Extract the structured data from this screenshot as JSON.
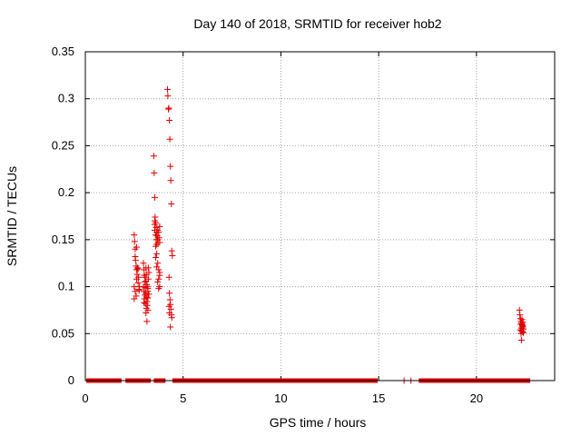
{
  "chart_data": {
    "type": "scatter",
    "title": "Day 140 of 2018, SRMTID for receiver hob2",
    "xlabel": "GPS time / hours",
    "ylabel": "SRMTID / TECUs",
    "xlim": [
      0,
      24
    ],
    "ylim": [
      0,
      0.35
    ],
    "xticks": [
      0,
      5,
      10,
      15,
      20
    ],
    "xtick_labels": [
      "0",
      "5",
      "10",
      "15",
      "20"
    ],
    "yticks": [
      0,
      0.05,
      0.1,
      0.15,
      0.2,
      0.25,
      0.3,
      0.35
    ],
    "ytick_labels": [
      "0",
      "0.05",
      "0.1",
      "0.15",
      "0.2",
      "0.25",
      "0.3",
      "0.35"
    ],
    "grid": true,
    "marker": "+",
    "marker_color": "#e00000",
    "zero_segments": [
      [
        0.05,
        1.85
      ],
      [
        2.05,
        3.35
      ],
      [
        3.5,
        4.1
      ],
      [
        4.45,
        14.95
      ],
      [
        17.05,
        22.75
      ]
    ],
    "zero_points": [
      16.3,
      16.65
    ],
    "series": [
      {
        "name": "SRMTID",
        "x": [
          2.5,
          2.52,
          2.55,
          2.57,
          2.6,
          2.62,
          2.65,
          2.5,
          2.55,
          2.6,
          2.62,
          2.67,
          2.7,
          2.72,
          2.75,
          2.77,
          2.5,
          2.55,
          2.62,
          2.7,
          2.75,
          2.97,
          3.0,
          3.02,
          3.05,
          3.07,
          3.1,
          3.12,
          3.15,
          3.17,
          3.2,
          3.22,
          3.25,
          2.97,
          3.0,
          3.05,
          3.1,
          3.15,
          3.2,
          3.25,
          3.02,
          3.07,
          3.12,
          3.17,
          3.22,
          3.0,
          3.1,
          3.2,
          3.05,
          3.15,
          3.1,
          3.2,
          3.12,
          3.5,
          3.52,
          3.55,
          3.57,
          3.6,
          3.62,
          3.65,
          3.67,
          3.7,
          3.72,
          3.55,
          3.6,
          3.62,
          3.65,
          3.7,
          3.75,
          3.77,
          3.8,
          3.55,
          3.6,
          3.65,
          3.7,
          3.75,
          3.8,
          3.6,
          3.7,
          3.75,
          3.8,
          3.65,
          3.75,
          3.8,
          3.8,
          3.55,
          3.7,
          4.2,
          4.22,
          4.25,
          4.27,
          4.3,
          4.32,
          4.35,
          4.37,
          4.4,
          4.42,
          4.45,
          4.28,
          4.3,
          4.33,
          4.35,
          4.38,
          4.4,
          4.42,
          4.35,
          4.3,
          4.28,
          22.2,
          22.22,
          22.25,
          22.27,
          22.3,
          22.32,
          22.35,
          22.37,
          22.4,
          22.25,
          22.3,
          22.35,
          22.4,
          22.28,
          22.33,
          22.38,
          22.3,
          22.35,
          22.27,
          22.32,
          22.37,
          22.3
        ],
        "y": [
          0.155,
          0.148,
          0.14,
          0.128,
          0.122,
          0.118,
          0.113,
          0.1,
          0.095,
          0.09,
          0.108,
          0.12,
          0.104,
          0.11,
          0.096,
          0.1,
          0.087,
          0.132,
          0.142,
          0.119,
          0.097,
          0.125,
          0.118,
          0.112,
          0.105,
          0.099,
          0.093,
          0.089,
          0.084,
          0.08,
          0.075,
          0.12,
          0.115,
          0.1,
          0.095,
          0.11,
          0.106,
          0.102,
          0.098,
          0.092,
          0.087,
          0.082,
          0.077,
          0.1,
          0.108,
          0.083,
          0.072,
          0.095,
          0.091,
          0.063,
          0.12,
          0.088,
          0.113,
          0.239,
          0.221,
          0.195,
          0.174,
          0.168,
          0.163,
          0.158,
          0.154,
          0.15,
          0.147,
          0.16,
          0.155,
          0.15,
          0.145,
          0.16,
          0.158,
          0.152,
          0.147,
          0.166,
          0.143,
          0.135,
          0.125,
          0.118,
          0.112,
          0.131,
          0.105,
          0.098,
          0.1,
          0.121,
          0.108,
          0.115,
          0.164,
          0.17,
          0.15,
          0.31,
          0.303,
          0.289,
          0.29,
          0.277,
          0.257,
          0.228,
          0.213,
          0.188,
          0.138,
          0.133,
          0.11,
          0.093,
          0.086,
          0.081,
          0.076,
          0.07,
          0.067,
          0.057,
          0.072,
          0.079,
          0.075,
          0.07,
          0.066,
          0.063,
          0.061,
          0.06,
          0.058,
          0.057,
          0.055,
          0.054,
          0.053,
          0.052,
          0.051,
          0.05,
          0.065,
          0.062,
          0.056,
          0.059,
          0.06,
          0.053,
          0.055,
          0.043
        ]
      }
    ]
  }
}
